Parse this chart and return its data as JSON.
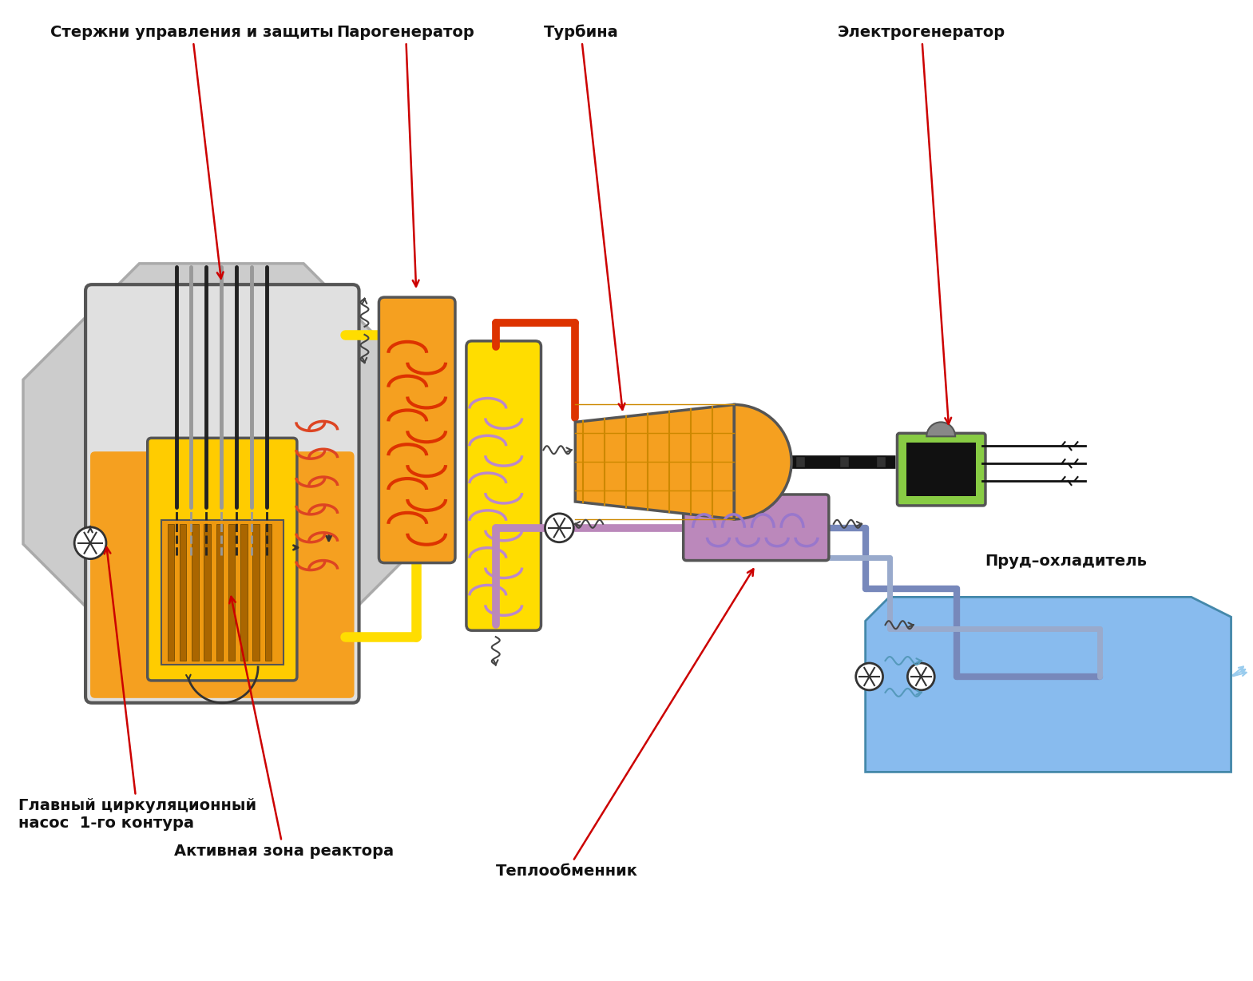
{
  "bg_color": "#ffffff",
  "labels": {
    "control_rods": "Стержни управления и защиты",
    "steam_generator": "Парогенератор",
    "turbine": "Турбина",
    "generator": "Электрогенератор",
    "main_pump": "Главный циркуляционный\nнасос  1-го контура",
    "active_zone": "Активная зона реактора",
    "heat_exchanger": "Теплообменник",
    "cooling_pond": "Пруд–охладитель"
  },
  "colors": {
    "bg_color": "#ffffff",
    "reactor_fill_orange": "#F5A020",
    "reactor_fill_yellow": "#FFCC00",
    "reactor_gray_top": "#E0E0E0",
    "reactor_border": "#555555",
    "octagon_fill": "#CCCCCC",
    "octagon_border": "#AAAAAA",
    "core_orange": "#EE9910",
    "core_bar": "#AA6600",
    "rod_dark": "#222222",
    "rod_light": "#999999",
    "ihx_coil": "#DD4422",
    "sg1_fill": "#F5A020",
    "sg2_fill": "#FFDD00",
    "sg1_coil": "#DD3300",
    "sg2_coil": "#BB88CC",
    "steam_pipe": "#CC2200",
    "turbine_fill": "#F5A020",
    "turbine_grid": "#CC8800",
    "shaft": "#111111",
    "generator_fill": "#88CC44",
    "generator_dark": "#111111",
    "generator_dome": "#888888",
    "wire": "#111111",
    "hx_fill": "#BB88BB",
    "hx_coil": "#9977CC",
    "pond_fill": "#88BBEE",
    "pond_border": "#4488AA",
    "pond_wave": "#5599BB",
    "pipe_yellow": "#FFDD00",
    "pipe_orange": "#F5A020",
    "pipe_red": "#DD3300",
    "pipe_purple": "#BB88BB",
    "pipe_blue_dark": "#7788BB",
    "pipe_blue_light": "#99AACC",
    "pump_fill": "#ffffff",
    "pump_border": "#333333",
    "arrow_red": "#CC0000",
    "arrow_black": "#333333",
    "squiggle": "#444444"
  }
}
